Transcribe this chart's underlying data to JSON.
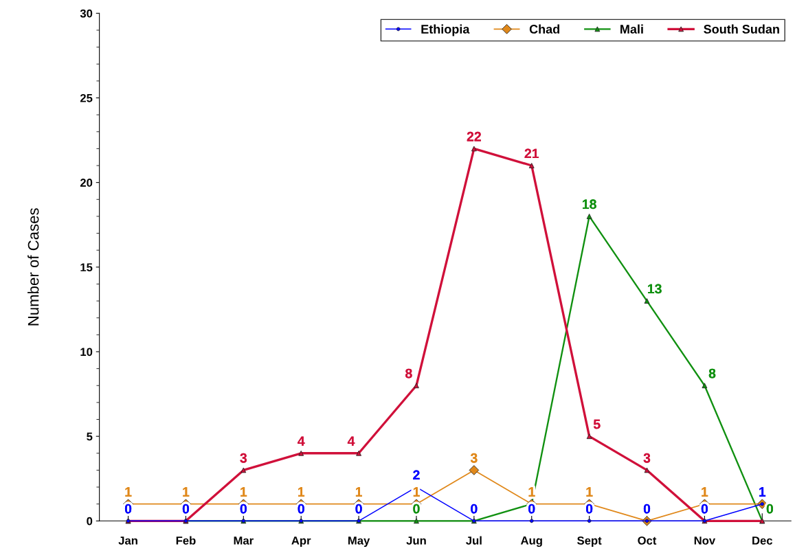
{
  "chart_data": {
    "type": "line",
    "ylabel": "Number of Cases",
    "categories": [
      "Jan",
      "Feb",
      "Mar",
      "Apr",
      "May",
      "Jun",
      "Jul",
      "Aug",
      "Sept",
      "Oct",
      "Nov",
      "Dec"
    ],
    "series": [
      {
        "name": "Ethiopia",
        "color": "#0000ff",
        "marker": "circle",
        "values": [
          0,
          0,
          0,
          0,
          0,
          2,
          0,
          0,
          0,
          0,
          0,
          1
        ],
        "value_labels": [
          "0",
          "0",
          "0",
          "0",
          "0",
          "2",
          "0",
          "0",
          "0",
          "0",
          "0",
          "1"
        ]
      },
      {
        "name": "Chad",
        "color": "#e0881a",
        "marker": "diamond",
        "values": [
          1,
          1,
          1,
          1,
          1,
          1,
          3,
          1,
          1,
          0,
          1,
          1
        ],
        "value_labels": [
          "1",
          "1",
          "1",
          "1",
          "1",
          "1",
          "3",
          "1",
          "1",
          null,
          "1",
          null
        ]
      },
      {
        "name": "Mali",
        "color": "#109010",
        "marker": "triangle",
        "values": [
          0,
          0,
          0,
          0,
          0,
          0,
          0,
          1,
          18,
          13,
          8,
          0
        ],
        "value_labels": [
          null,
          null,
          null,
          null,
          null,
          "0",
          null,
          null,
          "18",
          "13",
          "8",
          "0"
        ]
      },
      {
        "name": "South Sudan",
        "color": "#d0103a",
        "marker": "triangle",
        "values": [
          0,
          0,
          3,
          4,
          4,
          8,
          22,
          21,
          5,
          3,
          0,
          0
        ],
        "value_labels": [
          null,
          null,
          "3",
          "4",
          "4",
          "8",
          "22",
          "21",
          "5",
          "3",
          null,
          null
        ]
      }
    ],
    "ylim": [
      0,
      30
    ],
    "yticks": [
      0,
      5,
      10,
      15,
      20,
      25,
      30
    ],
    "grid": false,
    "legend": "top right",
    "line_style": "solid"
  }
}
